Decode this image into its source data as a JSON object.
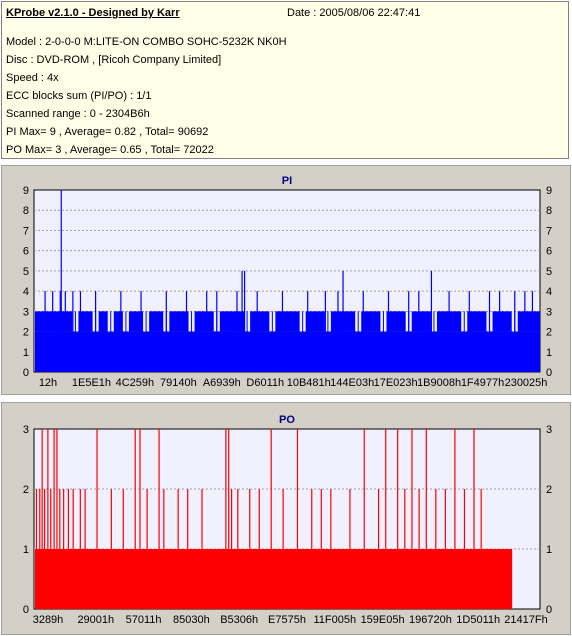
{
  "header": {
    "title": "KProbe v2.1.0 - Designed by Karr",
    "date": "Date : 2005/08/06 22:47:41",
    "lines": [
      "Model : 2-0-0-0 M:LITE-ON COMBO SOHC-5232K NK0H",
      "Disc : DVD-ROM ,  [Ricoh Company Limited]",
      "Speed : 4x",
      "ECC blocks sum (PI/PO) : 1/1",
      "Scanned range : 0 - 2304B6h",
      "PI Max= 9 , Average= 0.82 , Total= 90692",
      "PO Max= 3 , Average= 0.65 , Total= 72022"
    ]
  },
  "colors": {
    "pi": "#0000ff",
    "po": "#ff0000",
    "plot_bg": "#f0f0ff",
    "grid": "#a0a0a0"
  },
  "chart_data": [
    {
      "type": "bar",
      "title": "PI",
      "ylim": [
        0,
        9
      ],
      "yticks": [
        "0",
        "1",
        "2",
        "3",
        "4",
        "5",
        "6",
        "7",
        "8",
        "9"
      ],
      "xtick_labels": [
        "12h",
        "1E5E1h",
        "4C259h",
        "79140h",
        "A6939h",
        "D6011h",
        "10B481h",
        "144E03h",
        "17E023h",
        "1B9008h",
        "1F4977h",
        "230025h"
      ],
      "x_end_fraction": 1.0,
      "base_level": 2,
      "band_level": 3,
      "band_gaps": [
        0.08,
        0.12,
        0.15,
        0.18,
        0.22,
        0.26,
        0.31,
        0.36,
        0.42,
        0.47,
        0.53,
        0.58,
        0.64,
        0.69,
        0.74,
        0.79,
        0.85,
        0.9,
        0.95
      ],
      "spikes": [
        {
          "x": 0.02,
          "v": 4
        },
        {
          "x": 0.035,
          "v": 4
        },
        {
          "x": 0.05,
          "v": 4
        },
        {
          "x": 0.052,
          "v": 9
        },
        {
          "x": 0.06,
          "v": 4
        },
        {
          "x": 0.075,
          "v": 4
        },
        {
          "x": 0.09,
          "v": 4
        },
        {
          "x": 0.12,
          "v": 4
        },
        {
          "x": 0.17,
          "v": 4
        },
        {
          "x": 0.21,
          "v": 4
        },
        {
          "x": 0.26,
          "v": 4
        },
        {
          "x": 0.3,
          "v": 4
        },
        {
          "x": 0.34,
          "v": 4
        },
        {
          "x": 0.36,
          "v": 4
        },
        {
          "x": 0.4,
          "v": 4
        },
        {
          "x": 0.41,
          "v": 5
        },
        {
          "x": 0.415,
          "v": 5
        },
        {
          "x": 0.44,
          "v": 4
        },
        {
          "x": 0.49,
          "v": 4
        },
        {
          "x": 0.54,
          "v": 4
        },
        {
          "x": 0.575,
          "v": 4
        },
        {
          "x": 0.6,
          "v": 4
        },
        {
          "x": 0.61,
          "v": 5
        },
        {
          "x": 0.65,
          "v": 4
        },
        {
          "x": 0.7,
          "v": 4
        },
        {
          "x": 0.74,
          "v": 4
        },
        {
          "x": 0.76,
          "v": 4
        },
        {
          "x": 0.785,
          "v": 5
        },
        {
          "x": 0.82,
          "v": 4
        },
        {
          "x": 0.86,
          "v": 4
        },
        {
          "x": 0.9,
          "v": 4
        },
        {
          "x": 0.92,
          "v": 4
        },
        {
          "x": 0.95,
          "v": 4
        },
        {
          "x": 0.97,
          "v": 4
        },
        {
          "x": 0.985,
          "v": 4
        }
      ]
    },
    {
      "type": "bar",
      "title": "PO",
      "ylim": [
        0,
        3
      ],
      "yticks": [
        "0",
        "1",
        "2",
        "3"
      ],
      "xtick_labels": [
        "3289h",
        "29001h",
        "57011h",
        "85030h",
        "B5306h",
        "E7575h",
        "11F005h",
        "159E05h",
        "196720h",
        "1D5011h",
        "21417Fh"
      ],
      "x_end_fraction": 0.945,
      "base_level": 1,
      "band_level": 1,
      "band_gaps": [],
      "spikes": [
        {
          "x": 0.003,
          "v": 2
        },
        {
          "x": 0.01,
          "v": 2
        },
        {
          "x": 0.015,
          "v": 3
        },
        {
          "x": 0.02,
          "v": 2
        },
        {
          "x": 0.027,
          "v": 3
        },
        {
          "x": 0.033,
          "v": 2
        },
        {
          "x": 0.04,
          "v": 3
        },
        {
          "x": 0.046,
          "v": 3
        },
        {
          "x": 0.052,
          "v": 2
        },
        {
          "x": 0.06,
          "v": 2
        },
        {
          "x": 0.07,
          "v": 2
        },
        {
          "x": 0.08,
          "v": 2
        },
        {
          "x": 0.095,
          "v": 2
        },
        {
          "x": 0.105,
          "v": 2
        },
        {
          "x": 0.13,
          "v": 3
        },
        {
          "x": 0.16,
          "v": 2
        },
        {
          "x": 0.185,
          "v": 2
        },
        {
          "x": 0.21,
          "v": 3
        },
        {
          "x": 0.22,
          "v": 3
        },
        {
          "x": 0.235,
          "v": 2
        },
        {
          "x": 0.26,
          "v": 3
        },
        {
          "x": 0.27,
          "v": 2
        },
        {
          "x": 0.3,
          "v": 2
        },
        {
          "x": 0.32,
          "v": 2
        },
        {
          "x": 0.35,
          "v": 2
        },
        {
          "x": 0.4,
          "v": 3
        },
        {
          "x": 0.406,
          "v": 3
        },
        {
          "x": 0.412,
          "v": 2
        },
        {
          "x": 0.425,
          "v": 2
        },
        {
          "x": 0.45,
          "v": 2
        },
        {
          "x": 0.47,
          "v": 2
        },
        {
          "x": 0.495,
          "v": 3
        },
        {
          "x": 0.52,
          "v": 2
        },
        {
          "x": 0.55,
          "v": 3
        },
        {
          "x": 0.58,
          "v": 2
        },
        {
          "x": 0.6,
          "v": 2
        },
        {
          "x": 0.62,
          "v": 2
        },
        {
          "x": 0.66,
          "v": 2
        },
        {
          "x": 0.69,
          "v": 3
        },
        {
          "x": 0.72,
          "v": 2
        },
        {
          "x": 0.735,
          "v": 3
        },
        {
          "x": 0.76,
          "v": 3
        },
        {
          "x": 0.775,
          "v": 2
        },
        {
          "x": 0.79,
          "v": 3
        },
        {
          "x": 0.805,
          "v": 2
        },
        {
          "x": 0.82,
          "v": 3
        },
        {
          "x": 0.84,
          "v": 2
        },
        {
          "x": 0.86,
          "v": 2
        },
        {
          "x": 0.88,
          "v": 3
        },
        {
          "x": 0.9,
          "v": 2
        },
        {
          "x": 0.92,
          "v": 3
        },
        {
          "x": 0.935,
          "v": 2
        }
      ]
    }
  ]
}
